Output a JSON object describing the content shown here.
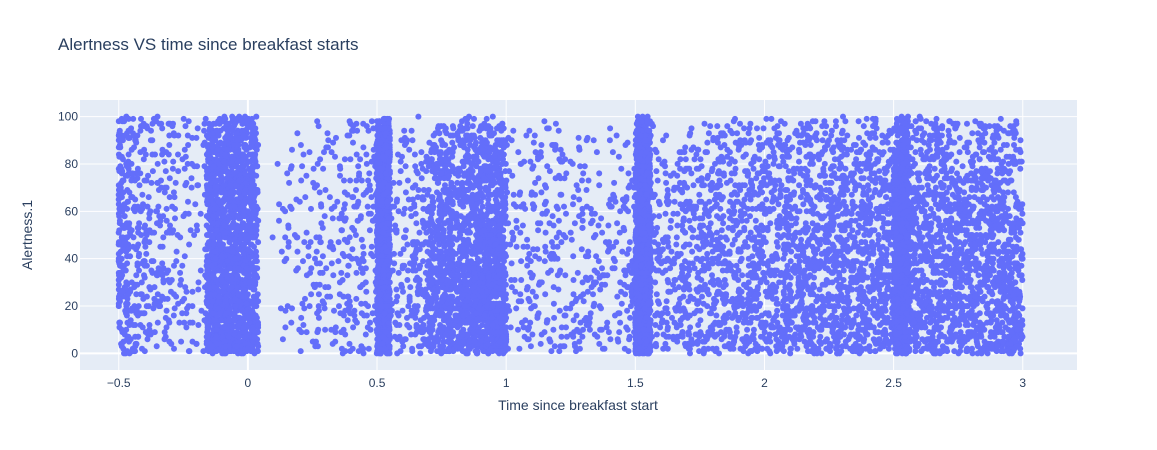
{
  "chart_data": {
    "type": "scatter",
    "title": "Alertness VS time since breakfast starts",
    "xlabel": "Time since breakfast start",
    "ylabel": "Alertness.1",
    "xlim": [
      -0.65,
      3.21
    ],
    "ylim": [
      -7,
      107
    ],
    "x_ticks": [
      -0.5,
      0,
      0.5,
      1,
      1.5,
      2,
      2.5,
      3
    ],
    "x_tick_labels": [
      "−0.5",
      "0",
      "0.5",
      "1",
      "1.5",
      "2",
      "2.5",
      "3"
    ],
    "y_ticks": [
      0,
      20,
      40,
      60,
      80,
      100
    ],
    "y_tick_labels": [
      "0",
      "20",
      "40",
      "60",
      "80",
      "100"
    ],
    "grid": true,
    "marker_color": "#636efa",
    "plot_background": "#e5ecf6",
    "series": [
      {
        "clusters": [
          {
            "x_range": [
              -0.5,
              0.0
            ],
            "y_range": [
              0,
              100
            ],
            "approx_points": 650,
            "x_skew": 2.2,
            "y_skew": 0.9
          },
          {
            "x_range": [
              -0.16,
              0.04
            ],
            "y_range": [
              0,
              100
            ],
            "approx_points": 1500,
            "x_skew": 1.0,
            "y_skew": 0.85
          },
          {
            "x_range": [
              0.0,
              0.5
            ],
            "y_range": [
              0,
              100
            ],
            "approx_points": 320,
            "x_skew": 0.45,
            "y_skew": 0.9
          },
          {
            "x_range": [
              0.5,
              1.0
            ],
            "y_range": [
              0,
              100
            ],
            "approx_points": 1700,
            "x_skew": 0.45,
            "y_skew": 0.7
          },
          {
            "x_range": [
              0.5,
              0.55
            ],
            "y_range": [
              0,
              100
            ],
            "approx_points": 1200,
            "x_skew": 1.0,
            "y_skew": 0.8
          },
          {
            "x_range": [
              0.7,
              1.5
            ],
            "y_range": [
              0,
              100
            ],
            "approx_points": 700,
            "x_skew": 1.0,
            "y_skew": 0.75
          },
          {
            "x_range": [
              1.5,
              2.5
            ],
            "y_range": [
              0,
              100
            ],
            "approx_points": 2300,
            "x_skew": 0.7,
            "y_skew": 0.75
          },
          {
            "x_range": [
              1.5,
              1.56
            ],
            "y_range": [
              0,
              100
            ],
            "approx_points": 1200,
            "x_skew": 1.0,
            "y_skew": 0.8
          },
          {
            "x_range": [
              2.5,
              3.0
            ],
            "y_range": [
              0,
              100
            ],
            "approx_points": 1700,
            "x_skew": 1.0,
            "y_skew": 0.75
          },
          {
            "x_range": [
              2.5,
              2.56
            ],
            "y_range": [
              0,
              100
            ],
            "approx_points": 700,
            "x_skew": 1.0,
            "y_skew": 0.8
          }
        ]
      }
    ]
  }
}
